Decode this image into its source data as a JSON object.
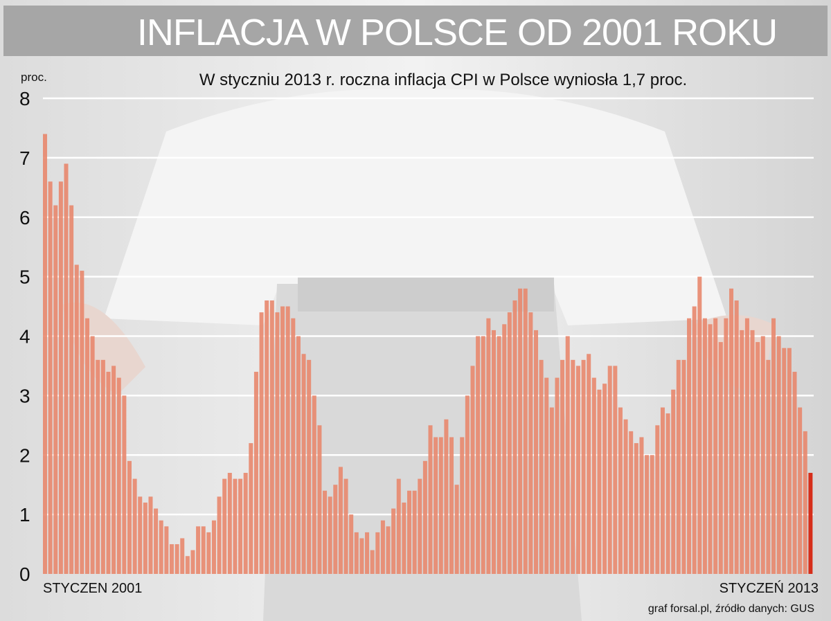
{
  "title": "INFLACJA W POLSCE OD 2001 ROKU",
  "source": "graf forsal.pl, źródło danych: GUS",
  "colors": {
    "bar": "#e8876d",
    "bar_highlight": "#d62e1a",
    "banner": "#a6a6a6",
    "grid": "#ffffff"
  },
  "chart_data": {
    "type": "bar",
    "subtitle": "W styczniu 2013 r. roczna inflacja CPI w Polsce wyniosła 1,7 proc.",
    "ylabel": "proc.",
    "ylim": [
      0,
      8
    ],
    "yticks": [
      0,
      1,
      2,
      3,
      4,
      5,
      6,
      7,
      8
    ],
    "x_first_label": "STYCZEN 2001",
    "x_last_label": "STYCZEŃ 2013",
    "grid": true,
    "highlight_last": true,
    "values": [
      7.4,
      6.6,
      6.2,
      6.6,
      6.9,
      6.2,
      5.2,
      5.1,
      4.3,
      4.0,
      3.6,
      3.6,
      3.4,
      3.5,
      3.3,
      3.0,
      1.9,
      1.6,
      1.3,
      1.2,
      1.3,
      1.1,
      0.9,
      0.8,
      0.5,
      0.5,
      0.6,
      0.3,
      0.4,
      0.8,
      0.8,
      0.7,
      0.9,
      1.3,
      1.6,
      1.7,
      1.6,
      1.6,
      1.7,
      2.2,
      3.4,
      4.4,
      4.6,
      4.6,
      4.4,
      4.5,
      4.5,
      4.3,
      4.0,
      3.7,
      3.6,
      3.0,
      2.5,
      1.4,
      1.3,
      1.5,
      1.8,
      1.6,
      1.0,
      0.7,
      0.6,
      0.7,
      0.4,
      0.7,
      0.9,
      0.8,
      1.1,
      1.6,
      1.2,
      1.4,
      1.4,
      1.6,
      1.9,
      2.5,
      2.3,
      2.3,
      2.6,
      2.3,
      1.5,
      2.3,
      3.0,
      3.5,
      4.0,
      4.0,
      4.3,
      4.1,
      4.0,
      4.2,
      4.4,
      4.6,
      4.8,
      4.8,
      4.4,
      4.1,
      3.6,
      3.3,
      2.8,
      3.3,
      3.6,
      4.0,
      3.6,
      3.5,
      3.6,
      3.7,
      3.3,
      3.1,
      3.2,
      3.5,
      3.5,
      2.8,
      2.6,
      2.4,
      2.2,
      2.3,
      2.0,
      2.0,
      2.5,
      2.8,
      2.7,
      3.1,
      3.6,
      3.6,
      4.3,
      4.5,
      5.0,
      4.3,
      4.2,
      4.3,
      3.9,
      4.3,
      4.8,
      4.6,
      4.1,
      4.3,
      4.1,
      3.9,
      4.0,
      3.6,
      4.3,
      4.0,
      3.8,
      3.8,
      3.4,
      2.8,
      2.4,
      1.7
    ]
  }
}
